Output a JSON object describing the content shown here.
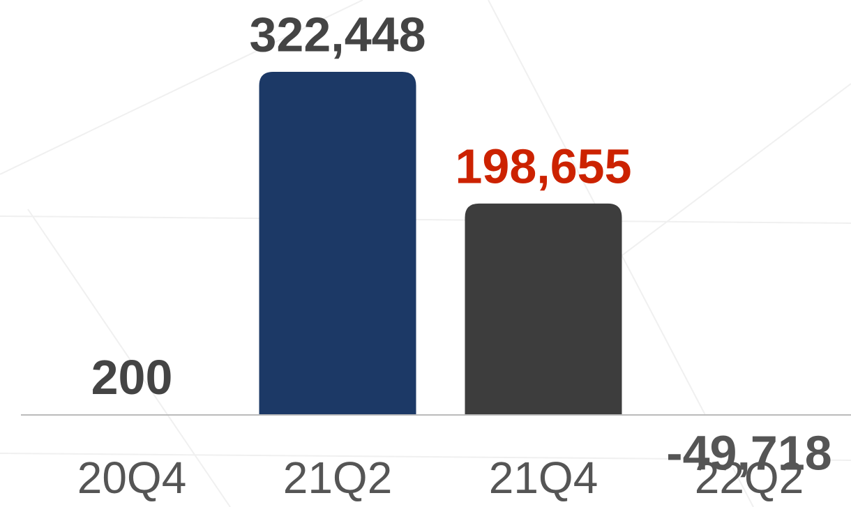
{
  "chart_data": {
    "type": "bar",
    "categories": [
      "20Q4",
      "21Q2",
      "21Q4",
      "22Q2"
    ],
    "values": [
      200,
      322448,
      198655,
      -49718
    ],
    "value_labels": [
      "200",
      "322,448",
      "198,655",
      "-49,718"
    ],
    "colors": [
      "#1c3966",
      "#1c3966",
      "#3d3d3d",
      "#ffffff"
    ],
    "label_colors": [
      "#444444",
      "#444444",
      "#cc2200",
      "#555555"
    ],
    "ylim": [
      -80000,
      350000
    ]
  }
}
